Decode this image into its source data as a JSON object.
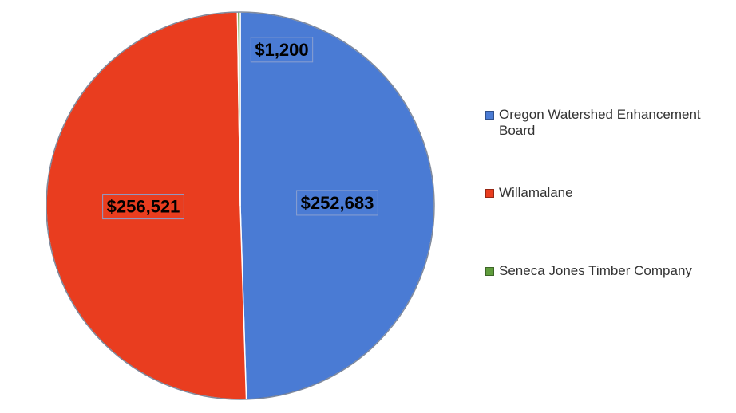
{
  "chart_data": {
    "type": "pie",
    "categories": [
      "Oregon Watershed Enhancement Board",
      "Willamalane",
      "Seneca Jones Timber Company"
    ],
    "values": [
      252683,
      256521,
      1200
    ],
    "value_labels": [
      "$252,683",
      "$256,521",
      "$1,200"
    ],
    "colors": [
      "#4a7bd4",
      "#e93d1f",
      "#5f9c3c"
    ],
    "legend": "right"
  }
}
